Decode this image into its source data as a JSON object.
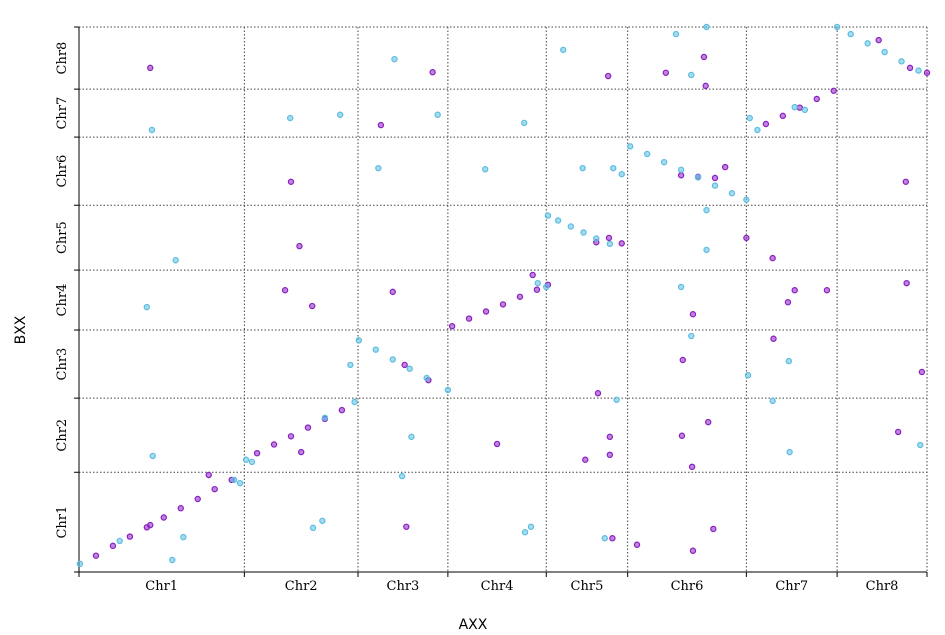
{
  "chart_data": {
    "type": "scatter",
    "xlabel": "AXX",
    "ylabel": "BXX",
    "xlim": [
      0,
      100
    ],
    "ylim": [
      0,
      100
    ],
    "xticks": [
      0,
      19.5,
      32.9,
      43.5,
      55.1,
      64.7,
      78.7,
      89.4,
      100
    ],
    "yticks": [
      0,
      18.3,
      31.9,
      44.4,
      55.4,
      67.3,
      79.8,
      88.6,
      100
    ],
    "x_categories": [
      "Chr1",
      "Chr2",
      "Chr3",
      "Chr4",
      "Chr5",
      "Chr6",
      "Chr7",
      "Chr8"
    ],
    "y_categories": [
      "Chr1",
      "Chr2",
      "Chr3",
      "Chr4",
      "Chr5",
      "Chr6",
      "Chr7",
      "Chr8"
    ],
    "grid": true,
    "series": [
      {
        "color": "#8a1fc0",
        "x": [
          2,
          4,
          6,
          8,
          10,
          12,
          14,
          16,
          18,
          21,
          23,
          25,
          27,
          29,
          31,
          38.4,
          41.2,
          44,
          46,
          48,
          50,
          52,
          54,
          55.3,
          61,
          62.5,
          64,
          71,
          73,
          75,
          81,
          83,
          85,
          87,
          89,
          94.3,
          98,
          100,
          8.4,
          25.0,
          26.0,
          24.3,
          27.5,
          26.2,
          15.3,
          41.7,
          35.6,
          37.0,
          38.6,
          49.3,
          62.4,
          73.9,
          73.7,
          69.2,
          76.2,
          78.7,
          74.2,
          72.3,
          71.1,
          71.2,
          72.4,
          74.8,
          72.4,
          65.8,
          62.6,
          62.6,
          59.7,
          61.2,
          84.4,
          83.6,
          88.2,
          81.9,
          81.8,
          97.6,
          96.6,
          99.4,
          97.5,
          53.5,
          62.9,
          8.4
        ],
        "values": [
          3.0,
          4.8,
          6.5,
          8.2,
          10.0,
          11.7,
          13.4,
          15.2,
          16.9,
          21.8,
          23.4,
          24.9,
          26.5,
          28.1,
          29.7,
          38.0,
          35.2,
          45.1,
          46.5,
          47.8,
          49.1,
          50.5,
          51.8,
          52.7,
          60.5,
          61.3,
          60.3,
          72.8,
          72.5,
          72.3,
          82.2,
          83.7,
          85.2,
          86.8,
          88.3,
          97.6,
          92.5,
          91.6,
          92.5,
          71.6,
          59.8,
          51.7,
          48.8,
          22.0,
          17.8,
          91.7,
          82.0,
          51.4,
          8.3,
          23.5,
          91.0,
          89.2,
          94.5,
          91.6,
          74.3,
          61.3,
          27.5,
          19.3,
          25.0,
          38.9,
          47.3,
          7.9,
          3.9,
          5.0,
          24.8,
          21.5,
          20.6,
          32.8,
          51.7,
          49.5,
          51.7,
          42.8,
          57.6,
          53.0,
          25.7,
          36.7,
          71.6,
          54.5,
          6.2,
          8.6
        ]
      },
      {
        "color": "#5bbde0",
        "x": [
          0.1,
          4.8,
          18.3,
          19.0,
          19.7,
          20.4,
          29.0,
          32.5,
          33,
          35,
          37,
          39,
          41,
          43.5,
          54.1,
          55.1,
          55.3,
          56.5,
          58,
          59.5,
          61,
          62.6,
          65,
          67,
          69,
          71,
          73,
          75,
          77,
          78.7,
          79.1,
          80,
          84.4,
          85.6,
          89.4,
          91,
          93,
          95,
          97,
          99,
          8.6,
          11.4,
          8.0,
          8.7,
          11.0,
          12.3,
          24.9,
          30.8,
          28.7,
          27.6,
          32.0,
          37.2,
          35.3,
          42.3,
          39.2,
          38.1,
          47.9,
          52.5,
          53.3,
          52.6,
          57.1,
          59.4,
          63.0,
          64.0,
          63.4,
          62.0,
          74.0,
          70.4,
          72.2,
          74.0,
          74.0,
          71.0,
          72.2,
          78.9,
          81.8,
          83.8,
          83.7,
          99.2
        ],
        "values": [
          1.5,
          5.7,
          16.9,
          16.3,
          20.6,
          20.2,
          28.3,
          31.2,
          42.5,
          40.8,
          39.0,
          37.3,
          35.6,
          33.4,
          53.0,
          52.3,
          65.4,
          64.5,
          63.4,
          62.3,
          61.2,
          60.2,
          78.1,
          76.7,
          75.2,
          73.8,
          72.4,
          70.9,
          69.5,
          68.3,
          83.3,
          81.1,
          85.3,
          84.8,
          100,
          98.7,
          97.0,
          95.4,
          93.7,
          92.0,
          81.1,
          57.2,
          48.6,
          21.3,
          2.2,
          6.4,
          83.3,
          83.9,
          9.4,
          8.1,
          38.0,
          94.1,
          74.1,
          83.9,
          24.8,
          17.6,
          73.9,
          82.4,
          8.3,
          7.3,
          95.8,
          74.1,
          74.1,
          73.0,
          31.6,
          6.2,
          100,
          98.7,
          91.2,
          66.4,
          59.1,
          52.3,
          43.3,
          36.1,
          31.4,
          22.0,
          38.7,
          23.3
        ]
      }
    ]
  }
}
